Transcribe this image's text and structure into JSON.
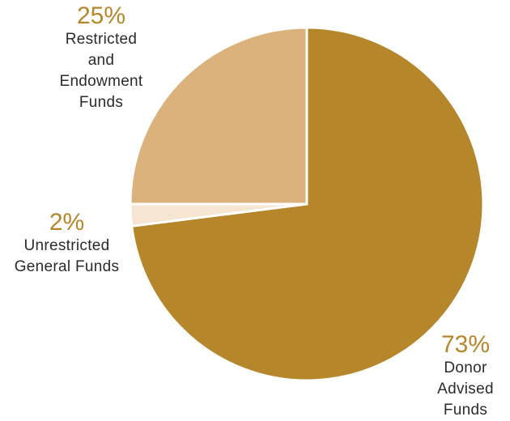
{
  "chart_data": {
    "type": "pie",
    "title": "",
    "series": [
      {
        "label": "Donor Advised Funds",
        "percent_label": "73%",
        "value": 73,
        "color": "#b5862a",
        "name_lines": [
          "Donor",
          "Advised",
          "Funds"
        ]
      },
      {
        "label": "Unrestricted General Funds",
        "percent_label": "2%",
        "value": 2,
        "color": "#f6e5d3",
        "name_lines": [
          "Unrestricted",
          "General Funds"
        ]
      },
      {
        "label": "Restricted and Endowment Funds",
        "percent_label": "25%",
        "value": 25,
        "color": "#dcb27c",
        "name_lines": [
          "Restricted",
          "and",
          "Endowment",
          "Funds"
        ]
      }
    ],
    "start_angle_deg": 0,
    "direction": "clockwise",
    "legend": "none",
    "label_color": "#b5862a",
    "separator_color": "#ffffff"
  }
}
